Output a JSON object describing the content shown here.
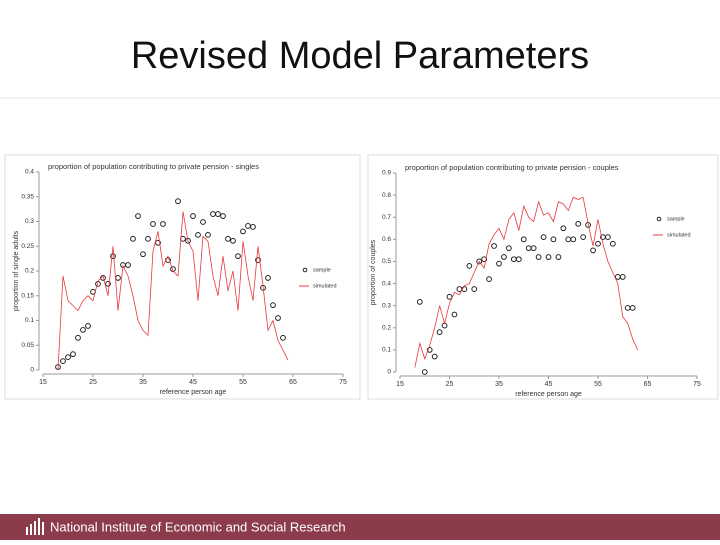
{
  "slide_title": "Revised Model Parameters",
  "footer": "National Institute of Economic and Social Research",
  "chart_data": [
    {
      "type": "line",
      "title": "proportion of population contributing to private pension - singles",
      "x_label": "reference person age",
      "y_label": "proportion of single adults",
      "x": [
        18,
        19,
        20,
        21,
        22,
        23,
        24,
        25,
        26,
        27,
        28,
        29,
        30,
        31,
        32,
        33,
        34,
        35,
        36,
        37,
        38,
        39,
        40,
        41,
        42,
        43,
        44,
        45,
        46,
        47,
        48,
        49,
        50,
        51,
        52,
        53,
        54,
        55,
        56,
        57,
        58,
        59,
        60,
        61,
        62,
        63,
        64
      ],
      "series": [
        {
          "name": "sample",
          "mode": "markers",
          "color": "#222222",
          "values": [
            0.006,
            0.018,
            0.026,
            0.032,
            0.065,
            0.081,
            0.089,
            0.158,
            0.174,
            0.186,
            0.174,
            0.23,
            0.186,
            0.212,
            0.212,
            0.265,
            0.311,
            0.234,
            0.265,
            0.295,
            0.257,
            0.295,
            0.222,
            0.204,
            0.341,
            0.265,
            0.261,
            0.311,
            0.273,
            0.299,
            0.273,
            0.315,
            0.315,
            0.311,
            0.265,
            0.261,
            0.23,
            0.28,
            0.291,
            0.289,
            0.222,
            0.166,
            0.186,
            0.131,
            0.105,
            0.065,
            null
          ]
        },
        {
          "name": "simulated",
          "mode": "line",
          "color": "#e8383d",
          "values": [
            0.0,
            0.19,
            0.14,
            0.13,
            0.12,
            0.14,
            0.15,
            0.14,
            0.18,
            0.19,
            0.15,
            0.25,
            0.12,
            0.21,
            0.19,
            0.15,
            0.1,
            0.08,
            0.07,
            0.24,
            0.28,
            0.21,
            0.23,
            0.2,
            0.19,
            0.32,
            0.26,
            0.24,
            0.14,
            0.27,
            0.26,
            0.19,
            0.15,
            0.23,
            0.16,
            0.2,
            0.12,
            0.26,
            0.19,
            0.14,
            0.25,
            0.17,
            0.08,
            0.1,
            0.06,
            0.04,
            0.02
          ]
        }
      ],
      "xlim": [
        15,
        75
      ],
      "xticks": [
        15,
        25,
        35,
        45,
        55,
        65,
        75
      ],
      "ylim": [
        0,
        0.4
      ],
      "yticks": [
        0,
        0.05,
        0.1,
        0.15,
        0.2,
        0.25,
        0.3,
        0.35,
        0.4
      ],
      "legend": "right"
    },
    {
      "type": "line",
      "title": "proportion of population contributing to private pension - couples",
      "x_label": "reference person age",
      "y_label": "proportion of couples",
      "x": [
        18,
        19,
        20,
        21,
        22,
        23,
        24,
        25,
        26,
        27,
        28,
        29,
        30,
        31,
        32,
        33,
        34,
        35,
        36,
        37,
        38,
        39,
        40,
        41,
        42,
        43,
        44,
        45,
        46,
        47,
        48,
        49,
        50,
        51,
        52,
        53,
        54,
        55,
        56,
        57,
        58,
        59,
        60,
        61,
        62,
        63
      ],
      "series": [
        {
          "name": "sample",
          "mode": "markers",
          "color": "#222222",
          "values": [
            null,
            0.317,
            0,
            0.1,
            0.07,
            0.18,
            0.21,
            0.34,
            0.26,
            0.375,
            0.375,
            0.48,
            0.375,
            0.5,
            0.51,
            0.42,
            0.57,
            0.49,
            0.52,
            0.56,
            0.51,
            0.51,
            0.6,
            0.56,
            0.56,
            0.52,
            0.61,
            0.52,
            0.6,
            0.52,
            0.65,
            0.6,
            0.6,
            0.67,
            0.61,
            0.665,
            0.55,
            0.58,
            0.61,
            0.61,
            0.58,
            0.43,
            0.43,
            0.29,
            0.29,
            null
          ]
        },
        {
          "name": "simulated",
          "mode": "line",
          "color": "#e8383d",
          "values": [
            0.02,
            0.13,
            0.06,
            0.12,
            0.2,
            0.3,
            0.22,
            0.31,
            0.36,
            0.35,
            0.39,
            0.4,
            0.45,
            0.5,
            0.47,
            0.58,
            0.62,
            0.65,
            0.6,
            0.69,
            0.72,
            0.64,
            0.75,
            0.7,
            0.68,
            0.77,
            0.71,
            0.72,
            0.68,
            0.77,
            0.76,
            0.73,
            0.79,
            0.78,
            0.79,
            0.67,
            0.57,
            0.69,
            0.58,
            0.5,
            0.45,
            0.4,
            0.25,
            0.22,
            0.15,
            0.1
          ]
        }
      ],
      "xlim": [
        15,
        75
      ],
      "xticks": [
        15,
        25,
        35,
        45,
        55,
        65,
        75
      ],
      "ylim": [
        0,
        0.9
      ],
      "yticks": [
        0,
        0.1,
        0.2,
        0.3,
        0.4,
        0.5,
        0.6,
        0.7,
        0.8,
        0.9
      ],
      "legend": "right"
    }
  ]
}
